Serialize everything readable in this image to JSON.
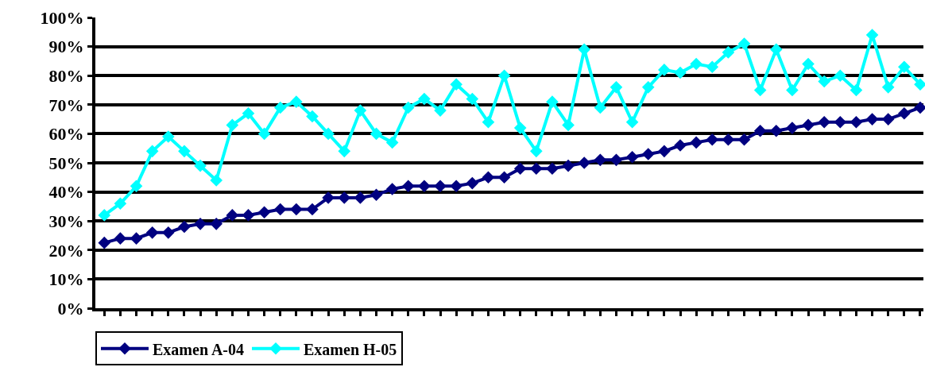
{
  "chart_data": {
    "type": "line",
    "categories": [
      null,
      null,
      null,
      null,
      null,
      null,
      null,
      null,
      null,
      null,
      null,
      null,
      null,
      null,
      null,
      null,
      null,
      null,
      null,
      null,
      null,
      null,
      null,
      null,
      null,
      null,
      null,
      null,
      null,
      null,
      null,
      null,
      null,
      null,
      null,
      null,
      null,
      null,
      null,
      null,
      null,
      null,
      null,
      null,
      null,
      null,
      null,
      null,
      null,
      null,
      null,
      null
    ],
    "series": [
      {
        "name": "Examen A-04",
        "color": "#000080",
        "values": [
          22.5,
          24,
          24,
          26,
          26,
          28,
          29,
          29,
          32,
          32,
          33,
          34,
          34,
          34,
          38,
          38,
          38,
          39,
          41,
          42,
          42,
          42,
          42,
          43,
          45,
          45,
          48,
          48,
          48,
          49,
          50,
          51,
          51,
          52,
          53,
          54,
          56,
          57,
          58,
          58,
          58,
          61,
          61,
          62,
          63,
          64,
          64,
          64,
          65,
          65,
          67,
          69
        ]
      },
      {
        "name": "Examen H-05",
        "color": "#00ffff",
        "values": [
          32,
          36,
          42,
          54,
          59,
          54,
          49,
          44,
          63,
          67,
          60,
          69,
          71,
          66,
          60,
          54,
          68,
          60,
          57,
          69,
          72,
          68,
          77,
          72,
          64,
          80,
          62,
          54,
          71,
          63,
          89,
          69,
          76,
          64,
          76,
          82,
          81,
          84,
          83,
          88,
          91,
          75,
          89,
          75,
          84,
          78,
          80,
          75,
          94,
          76,
          83,
          77
        ]
      }
    ],
    "ylim": [
      0,
      100
    ],
    "yticks": [
      {
        "value": 0,
        "label": "0%"
      },
      {
        "value": 10,
        "label": "10%"
      },
      {
        "value": 20,
        "label": "20%"
      },
      {
        "value": 30,
        "label": "30%"
      },
      {
        "value": 40,
        "label": "40%"
      },
      {
        "value": 50,
        "label": "50%"
      },
      {
        "value": 60,
        "label": "60%"
      },
      {
        "value": 70,
        "label": "70%"
      },
      {
        "value": 80,
        "label": "80%"
      },
      {
        "value": 90,
        "label": "90%"
      },
      {
        "value": 100,
        "label": "100%"
      }
    ],
    "grid": "y",
    "legend": "bottom",
    "marker": "diamond",
    "line_style": "solid",
    "tick_labels": "y"
  }
}
